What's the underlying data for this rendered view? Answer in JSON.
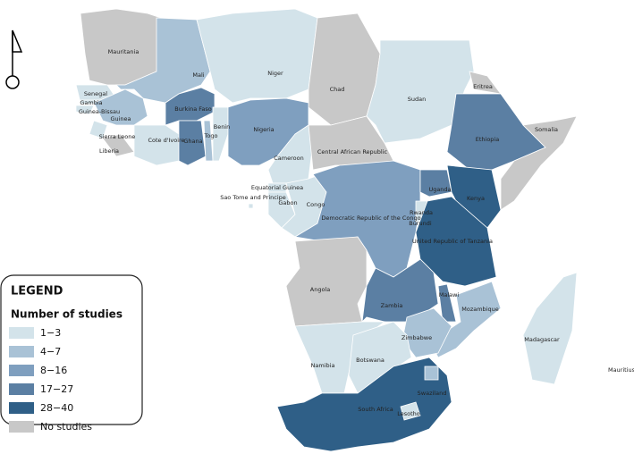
{
  "legend": {
    "title": "LEGEND",
    "subtitle": "Number of studies",
    "classes": [
      {
        "label": "1−3",
        "color": "#d3e3ea"
      },
      {
        "label": "4−7",
        "color": "#a9c2d6"
      },
      {
        "label": "8−16",
        "color": "#7f9fbf"
      },
      {
        "label": "17−27",
        "color": "#5b7fa3"
      },
      {
        "label": "28−40",
        "color": "#2f5f87"
      },
      {
        "label": "No studies",
        "color": "#c8c8c8"
      }
    ]
  },
  "countries": [
    {
      "name": "Mauritania",
      "studies": "No studies"
    },
    {
      "name": "Mali",
      "studies": "4−7"
    },
    {
      "name": "Niger",
      "studies": "1−3"
    },
    {
      "name": "Chad",
      "studies": "No studies"
    },
    {
      "name": "Sudan",
      "studies": "1−3"
    },
    {
      "name": "Eritrea",
      "studies": "No studies"
    },
    {
      "name": "Ethiopia",
      "studies": "17−27"
    },
    {
      "name": "Somalia",
      "studies": "No studies"
    },
    {
      "name": "Senegal",
      "studies": "1−3"
    },
    {
      "name": "Gambia",
      "studies": "1−3"
    },
    {
      "name": "Guinea-Bissau",
      "studies": "1−3"
    },
    {
      "name": "Guinea",
      "studies": "4−7"
    },
    {
      "name": "Sierra Leone",
      "studies": "1−3"
    },
    {
      "name": "Liberia",
      "studies": "No studies"
    },
    {
      "name": "Cote d'Ivoire",
      "studies": "1−3"
    },
    {
      "name": "Burkina Faso",
      "studies": "17−27"
    },
    {
      "name": "Ghana",
      "studies": "17−27"
    },
    {
      "name": "Togo",
      "studies": "4−7"
    },
    {
      "name": "Benin",
      "studies": "1−3"
    },
    {
      "name": "Nigeria",
      "studies": "8−16"
    },
    {
      "name": "Cameroon",
      "studies": "1−3"
    },
    {
      "name": "Central African Republic",
      "studies": "No studies"
    },
    {
      "name": "Equatorial Guinea",
      "studies": "1−3"
    },
    {
      "name": "Sao Tome and Principe",
      "studies": "1−3"
    },
    {
      "name": "Gabon",
      "studies": "1−3"
    },
    {
      "name": "Congo",
      "studies": "1−3"
    },
    {
      "name": "Democratic Republic of the Congo",
      "studies": "8−16"
    },
    {
      "name": "Uganda",
      "studies": "17−27"
    },
    {
      "name": "Kenya",
      "studies": "28−40"
    },
    {
      "name": "Rwanda",
      "studies": "1−3"
    },
    {
      "name": "Burundi",
      "studies": "1−3"
    },
    {
      "name": "United Republic of Tanzania",
      "studies": "28−40"
    },
    {
      "name": "Angola",
      "studies": "No studies"
    },
    {
      "name": "Zambia",
      "studies": "17−27"
    },
    {
      "name": "Malawi",
      "studies": "17−27"
    },
    {
      "name": "Mozambique",
      "studies": "4−7"
    },
    {
      "name": "Zimbabwe",
      "studies": "4−7"
    },
    {
      "name": "Namibia",
      "studies": "1−3"
    },
    {
      "name": "Botswana",
      "studies": "1−3"
    },
    {
      "name": "South Africa",
      "studies": "28−40"
    },
    {
      "name": "Swaziland",
      "studies": "4−7"
    },
    {
      "name": "Lesotho",
      "studies": "1−3"
    },
    {
      "name": "Madagascar",
      "studies": "1−3"
    },
    {
      "name": "Mauritius",
      "studies": "1−3"
    }
  ]
}
